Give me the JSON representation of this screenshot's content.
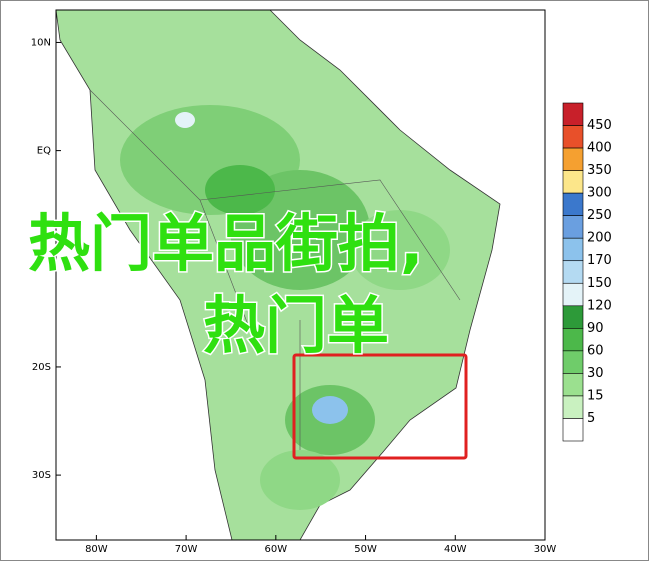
{
  "map": {
    "lonlim": [
      -84.5,
      -30
    ],
    "latlim": [
      -36,
      13
    ],
    "lat_ticks": [
      {
        "value": 10,
        "label": "10N"
      },
      {
        "value": 0,
        "label": "EQ"
      },
      {
        "value": -20,
        "label": "20S"
      },
      {
        "value": -30,
        "label": "30S"
      }
    ],
    "lon_ticks": [
      {
        "value": -80,
        "label": "80W"
      },
      {
        "value": -70,
        "label": "70W"
      },
      {
        "value": -60,
        "label": "60W"
      },
      {
        "value": -50,
        "label": "50W"
      },
      {
        "value": -40,
        "label": "40W"
      },
      {
        "value": -30,
        "label": "30W"
      }
    ]
  },
  "colorbar": {
    "levels": [
      450,
      400,
      350,
      300,
      250,
      200,
      170,
      150,
      120,
      90,
      60,
      30,
      15,
      5
    ],
    "colors": [
      "#c8202a",
      "#e8502a",
      "#f5a030",
      "#fce68a",
      "#3b78cc",
      "#6a9fe0",
      "#8cc2ec",
      "#b4daf2",
      "#e4f3f8",
      "#2d9a39",
      "#4cb84a",
      "#6fcc6a",
      "#9be08f",
      "#c9f1c0",
      "#ffffff"
    ]
  },
  "overlay": {
    "line1": "热门单品街拍,",
    "line2": "热门单"
  }
}
